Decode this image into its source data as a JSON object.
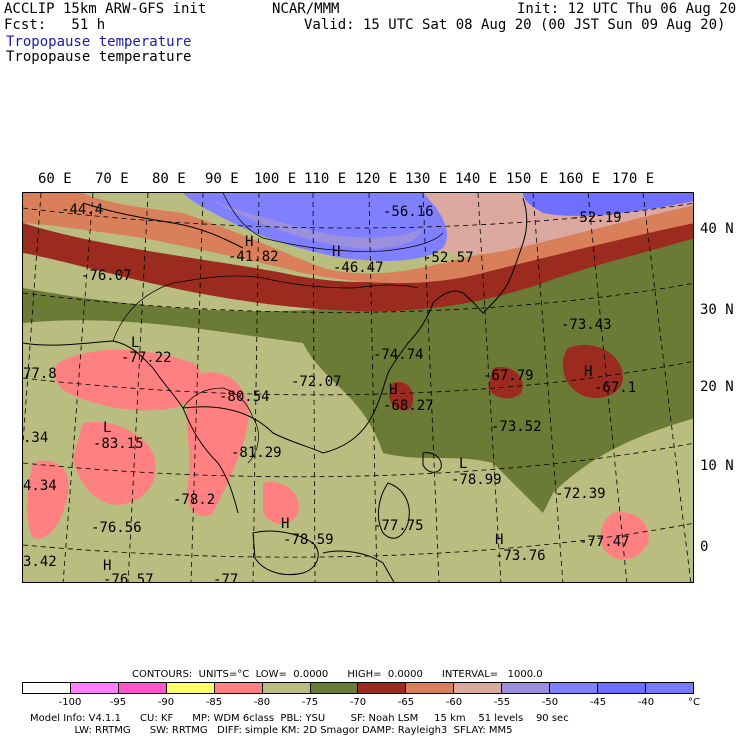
{
  "header": {
    "model_line": "ACCLIP 15km ARW-GFS init",
    "org": "NCAR/MMM",
    "init": "Init: 12 UTC Thu 06 Aug 20",
    "fcst": "Fcst:   51 h",
    "valid": "Valid: 15 UTC Sat 08 Aug 20 (00 JST Sun 09 Aug 20)",
    "field_blue": "Tropopause temperature",
    "field_black": "Tropopause temperature"
  },
  "lon_labels": [
    "60 E",
    "70 E",
    "80 E",
    "90 E",
    "100 E",
    "110 E",
    "120 E",
    "130 E",
    "140 E",
    "150 E",
    "160 E",
    "170 E"
  ],
  "lat_labels": [
    "40 N",
    "30 N",
    "20 N",
    "10 N",
    "0"
  ],
  "map_labels": [
    {
      "h": "",
      "v": "-44.4"
    },
    {
      "h": "",
      "v": "-56.16"
    },
    {
      "h": "",
      "v": "-52.19"
    },
    {
      "h": "H",
      "v": "-41.82"
    },
    {
      "h": "H",
      "v": "-46.47"
    },
    {
      "h": "",
      "v": "-52.57"
    },
    {
      "h": "",
      "v": "-76.07"
    },
    {
      "h": "",
      "v": "-73.43"
    },
    {
      "h": "L",
      "v": "-77.22"
    },
    {
      "h": "",
      "v": "-74.74"
    },
    {
      "h": "",
      "v": "-72.07"
    },
    {
      "h": "",
      "v": "-67.79"
    },
    {
      "h": "H",
      "v": "-67.1"
    },
    {
      "h": "",
      "v": "77.8"
    },
    {
      "h": "",
      "v": "-80.54"
    },
    {
      "h": "H",
      "v": "-68.27"
    },
    {
      "h": "",
      "v": "-73.52"
    },
    {
      "h": "",
      "v": ".34"
    },
    {
      "h": "L",
      "v": "-83.15"
    },
    {
      "h": "",
      "v": "-81.29"
    },
    {
      "h": "L",
      "v": "-78.99"
    },
    {
      "h": "",
      "v": "4.34"
    },
    {
      "h": "",
      "v": "-78.2"
    },
    {
      "h": "",
      "v": "-72.39"
    },
    {
      "h": "",
      "v": "-76.56"
    },
    {
      "h": "H",
      "v": "-78.59"
    },
    {
      "h": "",
      "v": "-77.75"
    },
    {
      "h": "",
      "v": "-77.47"
    },
    {
      "h": "H",
      "v": "-73.76"
    },
    {
      "h": "",
      "v": "3.42"
    },
    {
      "h": "H",
      "v": "-76.57"
    },
    {
      "h": "",
      "v": "-77"
    }
  ],
  "legend": {
    "contours_line": "CONTOURS:  UNITS=°C  LOW=  0.0000      HIGH=  0.0000      INTERVAL=   1000.0",
    "bins": [
      {
        "color": "#ffffff",
        "label": "-100"
      },
      {
        "color": "#ff80ff",
        "label": "-95"
      },
      {
        "color": "#ff55cc",
        "label": "-90"
      },
      {
        "color": "#ffff66",
        "label": "-85"
      },
      {
        "color": "#ff8080",
        "label": "-80"
      },
      {
        "color": "#b9bd80",
        "label": "-75"
      },
      {
        "color": "#6b7a35",
        "label": "-70"
      },
      {
        "color": "#9a2b1e",
        "label": "-65"
      },
      {
        "color": "#d9805a",
        "label": "-60"
      },
      {
        "color": "#dca9a0",
        "label": "-55"
      },
      {
        "color": "#9a90dd",
        "label": "-50"
      },
      {
        "color": "#8080ff",
        "label": "-45"
      },
      {
        "color": "#6f6fff",
        "label": "-40"
      },
      {
        "color": "#7a7aff",
        "label": "°C"
      }
    ]
  },
  "footer": {
    "line1": "Model Info: V4.1.1      CU: KF      MP: WDM 6class  PBL: YSU        SF: Noah LSM     15 km    51 levels    90 sec",
    "line2": "              LW: RRTMG      SW: RRTMG   DIFF: simple KM: 2D Smagor DAMP: Rayleigh3  SFLAY: MM5"
  }
}
